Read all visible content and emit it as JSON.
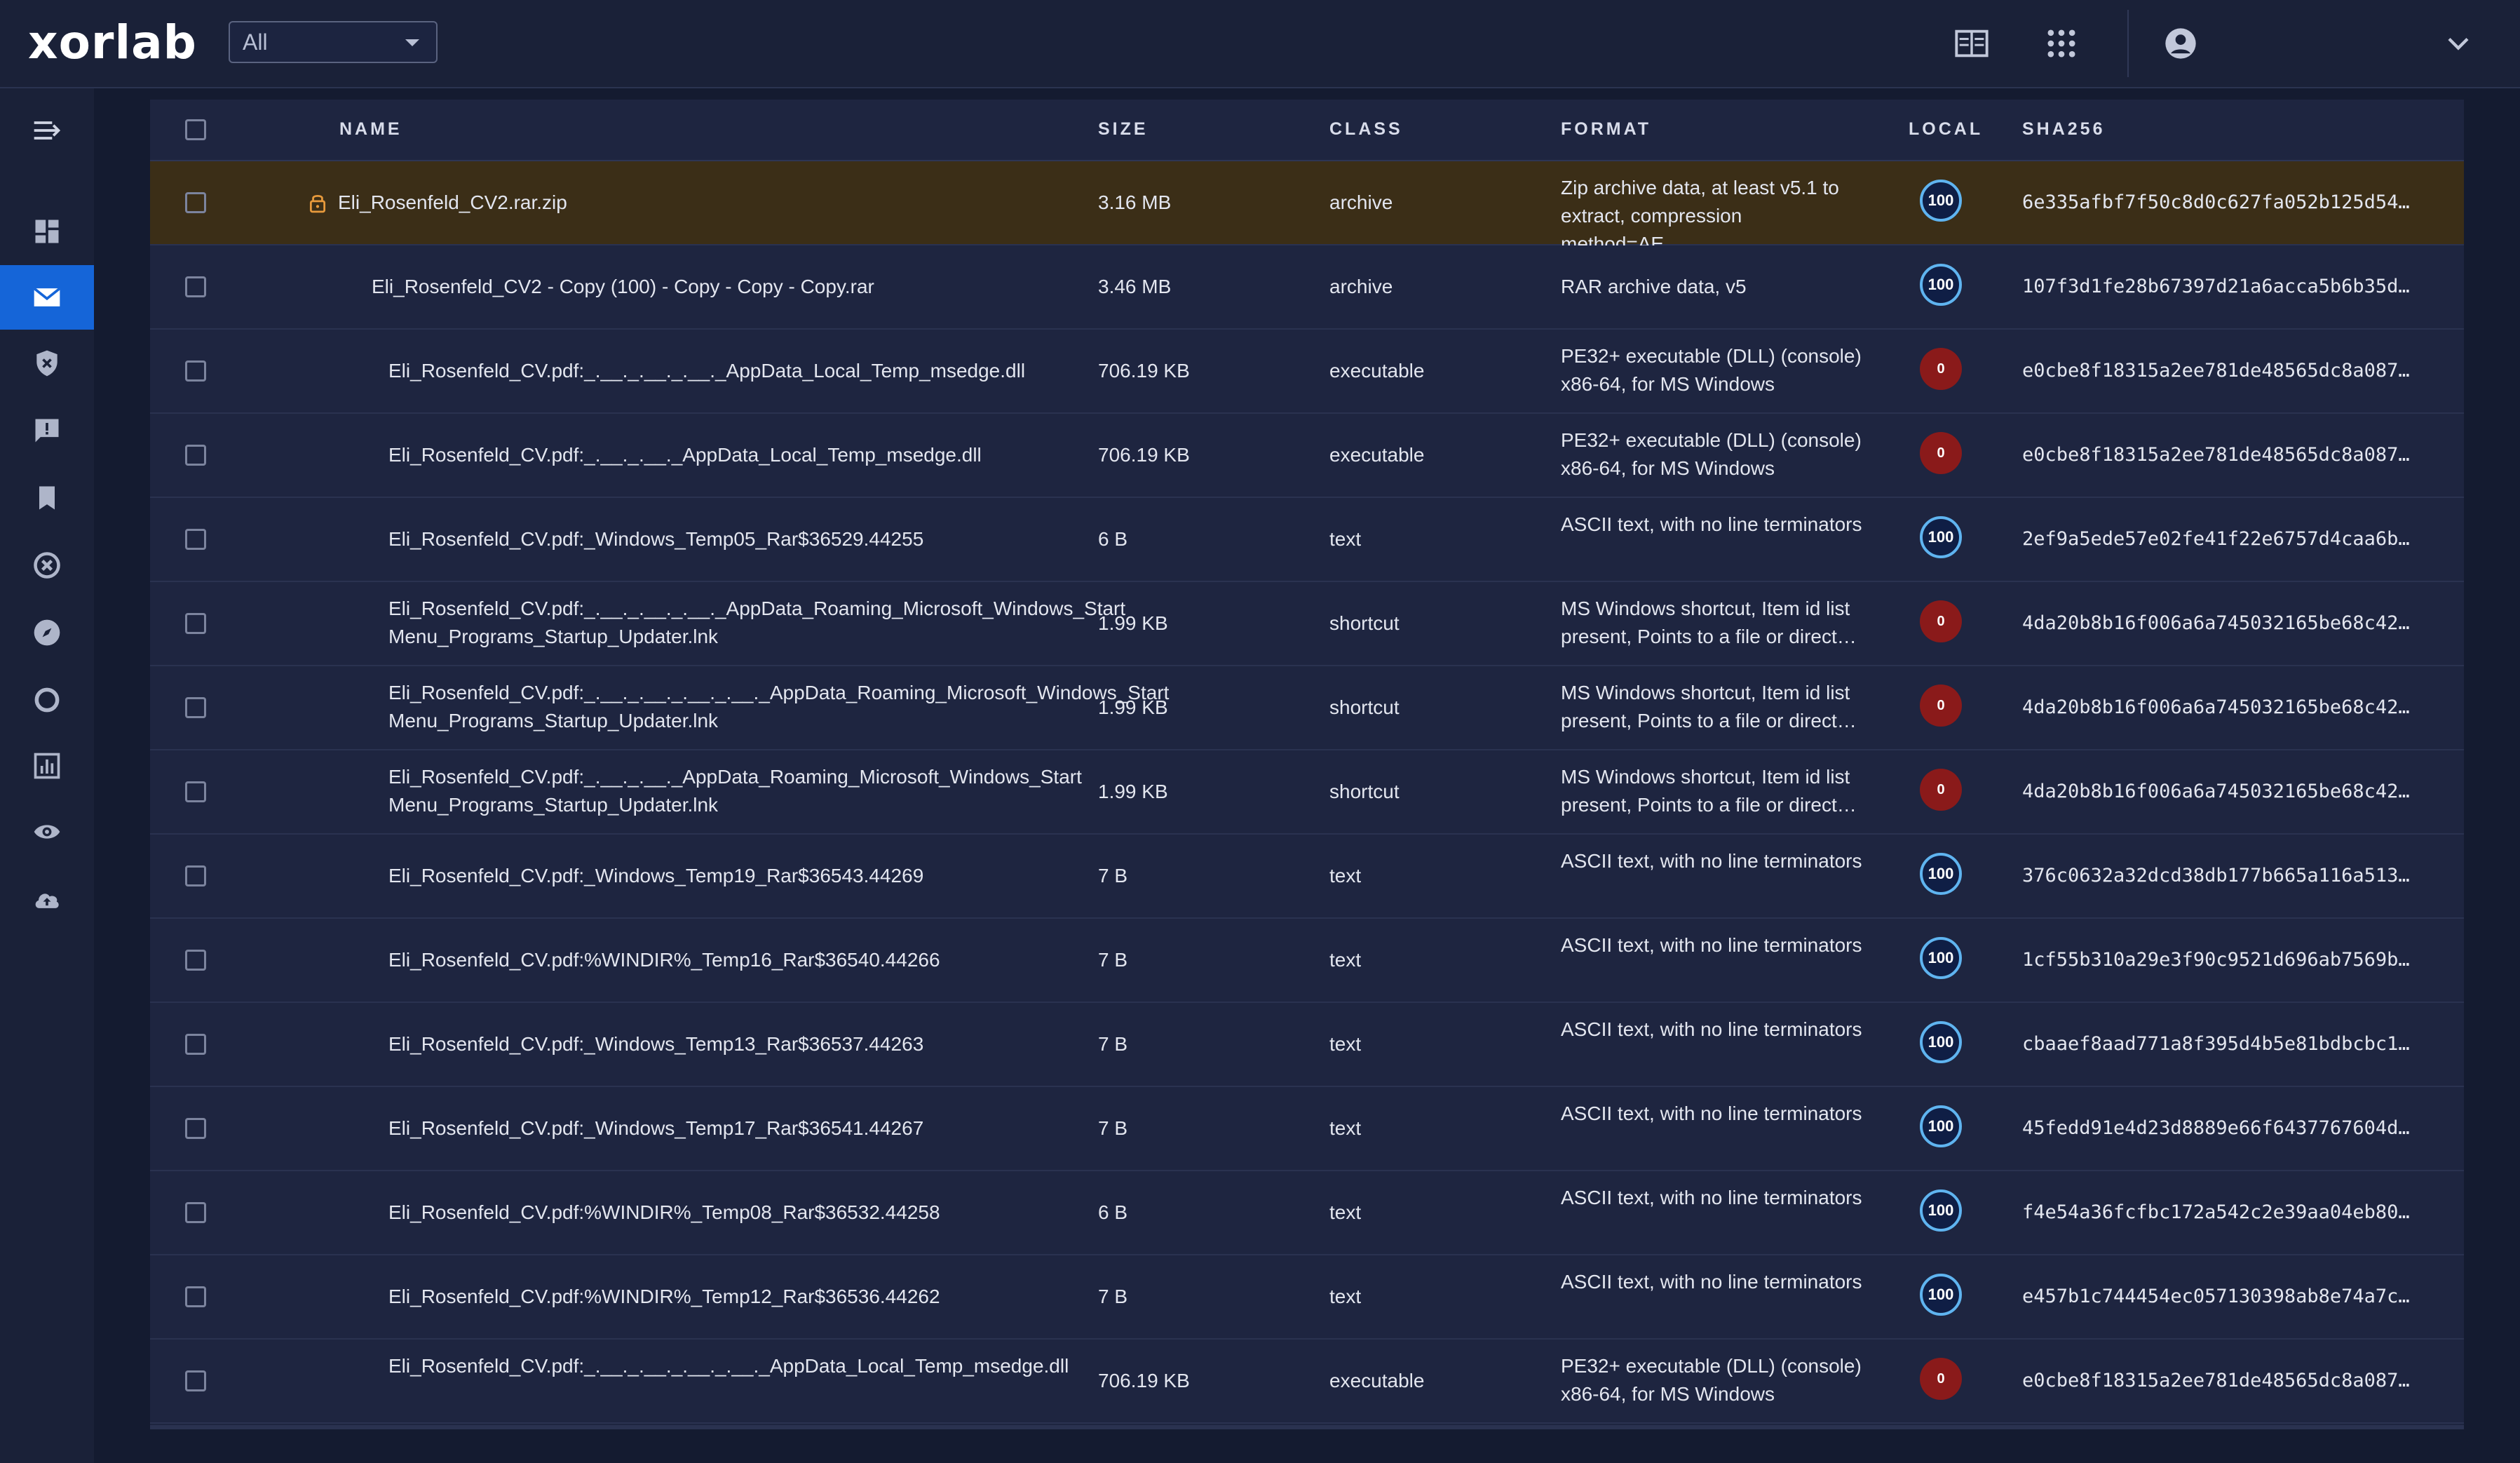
{
  "app": {
    "logo": "xorlab"
  },
  "filter": {
    "selected": "All"
  },
  "table": {
    "columns": {
      "name": "NAME",
      "size": "SIZE",
      "class": "CLASS",
      "format": "FORMAT",
      "local": "LOCAL",
      "sha256": "SHA256"
    },
    "rows": [
      {
        "name": "Eli_Rosenfeld_CV2.rar.zip",
        "size": "3.16 MB",
        "class": "archive",
        "format": "Zip archive data, at least v5.1 to extract, compression method=AE…",
        "local": "100",
        "sha256": "6e335afbf7f50c8d0c627fa052b125d54…"
      },
      {
        "name": "Eli_Rosenfeld_CV2 - Copy (100) - Copy - Copy - Copy.rar",
        "size": "3.46 MB",
        "class": "archive",
        "format": "RAR archive data, v5",
        "local": "100",
        "sha256": "107f3d1fe28b67397d21a6acca5b6b35d…"
      },
      {
        "name": "Eli_Rosenfeld_CV.pdf:_.__._.__._.__._AppData_Local_Temp_msedge.dll",
        "size": "706.19 KB",
        "class": "executable",
        "format": "PE32+ executable (DLL) (console) x86-64, for MS Windows",
        "local": "0",
        "sha256": "e0cbe8f18315a2ee781de48565dc8a087…"
      },
      {
        "name": "Eli_Rosenfeld_CV.pdf:_.__._.__._AppData_Local_Temp_msedge.dll",
        "size": "706.19 KB",
        "class": "executable",
        "format": "PE32+ executable (DLL) (console) x86-64, for MS Windows",
        "local": "0",
        "sha256": "e0cbe8f18315a2ee781de48565dc8a087…"
      },
      {
        "name": "Eli_Rosenfeld_CV.pdf:_Windows_Temp05_Rar$36529.44255",
        "size": "6 B",
        "class": "text",
        "format": "ASCII text, with no line terminators",
        "local": "100",
        "sha256": "2ef9a5ede57e02fe41f22e6757d4caa6b…"
      },
      {
        "name": "Eli_Rosenfeld_CV.pdf:_.__._.__._.__._AppData_Roaming_Microsoft_Windows_Start Menu_Programs_Startup_Updater.lnk",
        "size": "1.99 KB",
        "class": "shortcut",
        "format": "MS Windows shortcut, Item id list present, Points to a file or direct…",
        "local": "0",
        "sha256": "4da20b8b16f006a6a745032165be68c42…"
      },
      {
        "name": "Eli_Rosenfeld_CV.pdf:_.__._.__._.__._.__._AppData_Roaming_Microsoft_Windows_Start Menu_Programs_Startup_Updater.lnk",
        "size": "1.99 KB",
        "class": "shortcut",
        "format": "MS Windows shortcut, Item id list present, Points to a file or direct…",
        "local": "0",
        "sha256": "4da20b8b16f006a6a745032165be68c42…"
      },
      {
        "name": "Eli_Rosenfeld_CV.pdf:_.__._.__._AppData_Roaming_Microsoft_Windows_Start Menu_Programs_Startup_Updater.lnk",
        "size": "1.99 KB",
        "class": "shortcut",
        "format": "MS Windows shortcut, Item id list present, Points to a file or direct…",
        "local": "0",
        "sha256": "4da20b8b16f006a6a745032165be68c42…"
      },
      {
        "name": "Eli_Rosenfeld_CV.pdf:_Windows_Temp19_Rar$36543.44269",
        "size": "7 B",
        "class": "text",
        "format": "ASCII text, with no line terminators",
        "local": "100",
        "sha256": "376c0632a32dcd38db177b665a116a513…"
      },
      {
        "name": "Eli_Rosenfeld_CV.pdf:%WINDIR%_Temp16_Rar$36540.44266",
        "size": "7 B",
        "class": "text",
        "format": "ASCII text, with no line terminators",
        "local": "100",
        "sha256": "1cf55b310a29e3f90c9521d696ab7569b…"
      },
      {
        "name": "Eli_Rosenfeld_CV.pdf:_Windows_Temp13_Rar$36537.44263",
        "size": "7 B",
        "class": "text",
        "format": "ASCII text, with no line terminators",
        "local": "100",
        "sha256": "cbaaef8aad771a8f395d4b5e81bdbcbc1…"
      },
      {
        "name": "Eli_Rosenfeld_CV.pdf:_Windows_Temp17_Rar$36541.44267",
        "size": "7 B",
        "class": "text",
        "format": "ASCII text, with no line terminators",
        "local": "100",
        "sha256": "45fedd91e4d23d8889e66f6437767604d…"
      },
      {
        "name": "Eli_Rosenfeld_CV.pdf:%WINDIR%_Temp08_Rar$36532.44258",
        "size": "6 B",
        "class": "text",
        "format": "ASCII text, with no line terminators",
        "local": "100",
        "sha256": "f4e54a36fcfbc172a542c2e39aa04eb80…"
      },
      {
        "name": "Eli_Rosenfeld_CV.pdf:%WINDIR%_Temp12_Rar$36536.44262",
        "size": "7 B",
        "class": "text",
        "format": "ASCII text, with no line terminators",
        "local": "100",
        "sha256": "e457b1c744454ec057130398ab8e74a7c…"
      },
      {
        "name": "Eli_Rosenfeld_CV.pdf:_.__._.__._.__._.__._AppData_Local_Temp_msedge.dll",
        "size": "706.19 KB",
        "class": "executable",
        "format": "PE32+ executable (DLL) (console) x86-64, for MS Windows",
        "local": "0",
        "sha256": "e0cbe8f18315a2ee781de48565dc8a087…"
      }
    ]
  }
}
